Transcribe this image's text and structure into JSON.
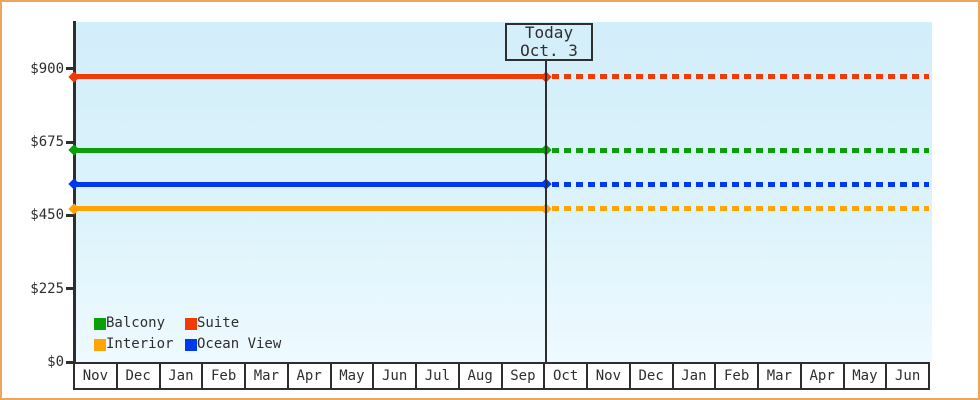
{
  "colors": {
    "frame_border": "#eca65f",
    "plot_bg_top": "#d2eefa",
    "plot_bg_bottom": "#eefaff",
    "axis": "#2e2e2e",
    "text": "#2e2e2e",
    "today_box_fill": "#d4effa"
  },
  "today": {
    "line1": "Today",
    "line2": "Oct. 3"
  },
  "chart_data": {
    "type": "line",
    "title": "",
    "xlabel": "",
    "ylabel": "",
    "categories": [
      "Nov",
      "Dec",
      "Jan",
      "Feb",
      "Mar",
      "Apr",
      "May",
      "Jun",
      "Jul",
      "Aug",
      "Sep",
      "Oct",
      "Nov",
      "Dec",
      "Jan",
      "Feb",
      "Mar",
      "Apr",
      "May",
      "Jun"
    ],
    "y_ticks": [
      {
        "value": 0,
        "label": "$0"
      },
      {
        "value": 225,
        "label": "$225"
      },
      {
        "value": 450,
        "label": "$450"
      },
      {
        "value": 675,
        "label": "$675"
      },
      {
        "value": 900,
        "label": "$900"
      }
    ],
    "ylim": [
      0,
      900
    ],
    "grid": false,
    "legend_position": "bottom-left-inside",
    "annotation": "Vertical marker line labeled Today Oct. 3 at start of first Oct; lines are solid (actual) before today and dotted (projected) after today; flat constant price per cabin type",
    "today_category_index": 11,
    "series": [
      {
        "name": "Balcony",
        "color": "#0aa00a",
        "value": 650,
        "style_before_today": "solid",
        "style_after_today": "dotted"
      },
      {
        "name": "Suite",
        "color": "#f13a05",
        "value": 875,
        "style_before_today": "solid",
        "style_after_today": "dotted"
      },
      {
        "name": "Interior",
        "color": "#ffa400",
        "value": 470,
        "style_before_today": "solid",
        "style_after_today": "dotted"
      },
      {
        "name": "Ocean View",
        "color": "#0038ee",
        "value": 545,
        "style_before_today": "solid",
        "style_after_today": "dotted"
      }
    ]
  }
}
